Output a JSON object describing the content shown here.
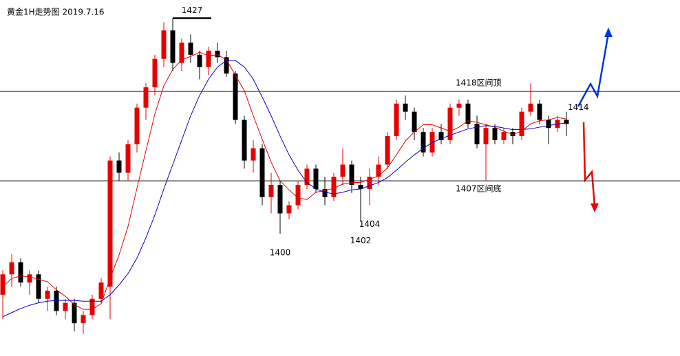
{
  "chart_data": {
    "type": "candlestick",
    "title": "黄金1H走势图 2019.7.16",
    "ylim": [
      1388,
      1430
    ],
    "up_color": "#e60000",
    "down_color": "#000000",
    "candles": [
      [
        1393,
        1396,
        1390,
        1395.5
      ],
      [
        1395.5,
        1398,
        1394,
        1397
      ],
      [
        1397,
        1397.5,
        1394,
        1394.5
      ],
      [
        1394.5,
        1396,
        1393,
        1395.5
      ],
      [
        1395.5,
        1396,
        1392,
        1392.5
      ],
      [
        1392.5,
        1394,
        1391,
        1393.5
      ],
      [
        1393.5,
        1394,
        1390.5,
        1391
      ],
      [
        1391,
        1392.5,
        1390,
        1392
      ],
      [
        1392,
        1392.5,
        1388.5,
        1389.5
      ],
      [
        1389.5,
        1391,
        1388.2,
        1390.5
      ],
      [
        1390.5,
        1393,
        1390,
        1392.5
      ],
      [
        1392.5,
        1395,
        1392,
        1394.5
      ],
      [
        1394,
        1410,
        1390,
        1409.5
      ],
      [
        1409.5,
        1410.5,
        1407,
        1408
      ],
      [
        1408,
        1412,
        1407,
        1411.5
      ],
      [
        1411.5,
        1416.5,
        1410.5,
        1416
      ],
      [
        1416,
        1419,
        1414.5,
        1418.5
      ],
      [
        1418.5,
        1422.5,
        1417.5,
        1422
      ],
      [
        1422,
        1426.5,
        1421,
        1425.5
      ],
      [
        1425.5,
        1427,
        1420.5,
        1421.5
      ],
      [
        1421.5,
        1424.5,
        1420.5,
        1424
      ],
      [
        1424,
        1425,
        1421.5,
        1422.5
      ],
      [
        1422.5,
        1423,
        1419.5,
        1421
      ],
      [
        1421,
        1423.5,
        1420,
        1423
      ],
      [
        1423,
        1424,
        1421.5,
        1422.2
      ],
      [
        1422.2,
        1423,
        1419.8,
        1420.2
      ],
      [
        1420.2,
        1420.5,
        1414,
        1414.5
      ],
      [
        1414.5,
        1415,
        1408.5,
        1409.5
      ],
      [
        1409.5,
        1412,
        1408,
        1411
      ],
      [
        1411,
        1411.5,
        1404,
        1405
      ],
      [
        1405,
        1408,
        1403,
        1406.5
      ],
      [
        1406.5,
        1407,
        1400.5,
        1403
      ],
      [
        1403,
        1404.5,
        1402.3,
        1404
      ],
      [
        1404,
        1407,
        1403.5,
        1406.5
      ],
      [
        1406.5,
        1409,
        1406,
        1408.5
      ],
      [
        1408.5,
        1409,
        1405.5,
        1406
      ],
      [
        1406,
        1407.5,
        1404,
        1405
      ],
      [
        1405,
        1408,
        1404.5,
        1407.5
      ],
      [
        1407.5,
        1411,
        1406.5,
        1409
      ],
      [
        1409,
        1409.5,
        1405.5,
        1406.5
      ],
      [
        1406.5,
        1407.5,
        1402,
        1406
      ],
      [
        1406,
        1408.5,
        1404,
        1407.5
      ],
      [
        1407.5,
        1410,
        1406.5,
        1409
      ],
      [
        1409,
        1413,
        1408.5,
        1412.5
      ],
      [
        1412.5,
        1417,
        1412,
        1416.5
      ],
      [
        1416.5,
        1417.5,
        1414.5,
        1415.5
      ],
      [
        1415.5,
        1416,
        1412,
        1413
      ],
      [
        1413,
        1413.5,
        1410,
        1410.5
      ],
      [
        1410.5,
        1413.5,
        1410,
        1413
      ],
      [
        1413,
        1414,
        1411.5,
        1412
      ],
      [
        1412,
        1416.5,
        1411.5,
        1416
      ],
      [
        1416,
        1417,
        1415,
        1416.5
      ],
      [
        1416.5,
        1417,
        1413.5,
        1414
      ],
      [
        1414,
        1415,
        1411,
        1411.5
      ],
      [
        1411.5,
        1414,
        1407,
        1413.5
      ],
      [
        1413.5,
        1414,
        1411.5,
        1412
      ],
      [
        1412,
        1413.5,
        1411.5,
        1413
      ],
      [
        1413,
        1413.5,
        1411.5,
        1412.5
      ],
      [
        1412.5,
        1416,
        1412,
        1415.5
      ],
      [
        1415.5,
        1419,
        1415,
        1416.5
      ],
      [
        1416.5,
        1417,
        1414,
        1414.5
      ],
      [
        1414.5,
        1415,
        1411.5,
        1413.5
      ],
      [
        1413.5,
        1415,
        1413,
        1414.5
      ],
      [
        1414.5,
        1415.5,
        1412.5,
        1414
      ]
    ],
    "series": [
      {
        "color": "#e60000",
        "values": [
          1394,
          1395,
          1395.3,
          1395.2,
          1394.9,
          1394.6,
          1393.6,
          1392.8,
          1391.8,
          1391.2,
          1391.2,
          1391.9,
          1395,
          1397.9,
          1401.4,
          1406.1,
          1410.7,
          1415.2,
          1418.7,
          1420.7,
          1421.9,
          1422.3,
          1422.8,
          1422.4,
          1422.5,
          1421.9,
          1420,
          1418.1,
          1415,
          1412.1,
          1409.3,
          1407,
          1405.9,
          1404.9,
          1404.7,
          1405.6,
          1405.8,
          1406.1,
          1406.6,
          1406.8,
          1406.8,
          1407.2,
          1407.6,
          1408.6,
          1410.2,
          1411.9,
          1413,
          1413.9,
          1413.9,
          1413.5,
          1413.1,
          1413.6,
          1414.4,
          1414.2,
          1413.9,
          1413.6,
          1413.1,
          1412.7,
          1413.1,
          1414,
          1414.4,
          1414.5,
          1414.8,
          1414.6
        ]
      },
      {
        "color": "#0000cc",
        "values": [
          1390.3,
          1390.8,
          1391.3,
          1391.7,
          1392,
          1392.2,
          1392.3,
          1392.3,
          1392.3,
          1392.2,
          1392.2,
          1392.2,
          1393,
          1394.2,
          1395.6,
          1397.5,
          1400,
          1402.8,
          1406,
          1409,
          1412,
          1415,
          1417.5,
          1419.5,
          1421,
          1421.8,
          1421.8,
          1421,
          1419.5,
          1417.3,
          1415,
          1412.5,
          1410.2,
          1408.3,
          1406.8,
          1406,
          1405.6,
          1405.4,
          1405.6,
          1405.9,
          1406,
          1406.4,
          1406.8,
          1407.4,
          1408.3,
          1409.3,
          1410.2,
          1411,
          1411.7,
          1412.2,
          1412.6,
          1413,
          1413.4,
          1413.6,
          1413.8,
          1413.7,
          1413.5,
          1413.3,
          1413.3,
          1413.4,
          1413.6,
          1413.8,
          1414,
          1414.1
        ]
      }
    ],
    "levels": [
      {
        "value": 1418,
        "label": "1418区间顶"
      },
      {
        "value": 1407,
        "label": "1407区间底"
      }
    ],
    "annotations": [
      {
        "index": 19,
        "value": 1427
      },
      {
        "index": 31,
        "value": 1400
      },
      {
        "index": 40,
        "value": 1402
      },
      {
        "index": 41,
        "value": 1404
      },
      {
        "index": 63,
        "value": 1414
      }
    ]
  }
}
